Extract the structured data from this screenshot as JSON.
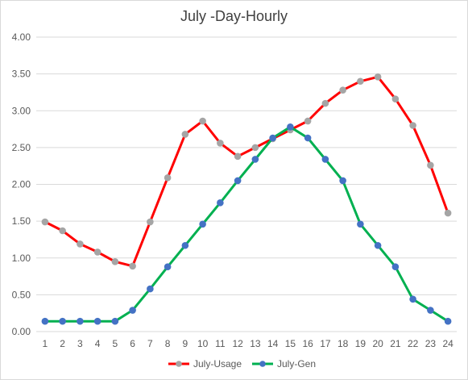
{
  "chart_data": {
    "type": "line",
    "title": "July -Day-Hourly",
    "xlabel": "",
    "ylabel": "",
    "x": [
      1,
      2,
      3,
      4,
      5,
      6,
      7,
      8,
      9,
      10,
      11,
      12,
      13,
      14,
      15,
      16,
      17,
      18,
      19,
      20,
      21,
      22,
      23,
      24
    ],
    "ylim": [
      0,
      4
    ],
    "yticks": [
      "0.00",
      "0.50",
      "1.00",
      "1.50",
      "2.00",
      "2.50",
      "3.00",
      "3.50",
      "4.00"
    ],
    "grid": true,
    "legend": "bottom",
    "series": [
      {
        "name": "July-Usage",
        "line_color": "#ff0000",
        "marker_color": "#a5a5a5",
        "values": [
          1.49,
          1.37,
          1.19,
          1.08,
          0.95,
          0.89,
          1.49,
          2.09,
          2.68,
          2.86,
          2.56,
          2.38,
          2.5,
          2.62,
          2.74,
          2.86,
          3.1,
          3.28,
          3.4,
          3.46,
          3.16,
          2.8,
          2.26,
          1.61
        ]
      },
      {
        "name": "July-Gen",
        "line_color": "#00b050",
        "marker_color": "#4472c4",
        "values": [
          0.14,
          0.14,
          0.14,
          0.14,
          0.14,
          0.29,
          0.58,
          0.88,
          1.17,
          1.46,
          1.75,
          2.05,
          2.34,
          2.63,
          2.78,
          2.63,
          2.34,
          2.05,
          1.46,
          1.17,
          0.88,
          0.44,
          0.29,
          0.14
        ]
      }
    ]
  }
}
